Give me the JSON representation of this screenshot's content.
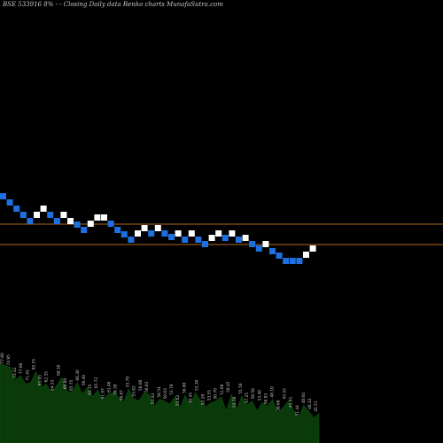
{
  "header": {
    "symbol": "BSE 533916",
    "subtitle": "8% - - Closing Daily data Renko charts MunafaSutra.com"
  },
  "colors": {
    "background": "#000000",
    "up_brick": "#ffffff",
    "down_brick": "#1e6fe0",
    "reference_line": "#b06a1f",
    "volume_fill": "#0a3a0a",
    "volume_label": "#c8c8c8"
  },
  "chart_data": {
    "type": "renko",
    "title": "",
    "reference_lines": [
      253,
      276
    ],
    "bricks": [
      {
        "dir": "down",
        "y": 218
      },
      {
        "dir": "down",
        "y": 225
      },
      {
        "dir": "down",
        "y": 232
      },
      {
        "dir": "down",
        "y": 239
      },
      {
        "dir": "down",
        "y": 246
      },
      {
        "dir": "up",
        "y": 239
      },
      {
        "dir": "up",
        "y": 232
      },
      {
        "dir": "down",
        "y": 239
      },
      {
        "dir": "down",
        "y": 246
      },
      {
        "dir": "up",
        "y": 239
      },
      {
        "dir": "up",
        "y": 246
      },
      {
        "dir": "down",
        "y": 250
      },
      {
        "dir": "down",
        "y": 256
      },
      {
        "dir": "up",
        "y": 249
      },
      {
        "dir": "up",
        "y": 242
      },
      {
        "dir": "up",
        "y": 242
      },
      {
        "dir": "down",
        "y": 249
      },
      {
        "dir": "down",
        "y": 256
      },
      {
        "dir": "down",
        "y": 261
      },
      {
        "dir": "down",
        "y": 267
      },
      {
        "dir": "up",
        "y": 260
      },
      {
        "dir": "up",
        "y": 254
      },
      {
        "dir": "down",
        "y": 260
      },
      {
        "dir": "up",
        "y": 254
      },
      {
        "dir": "down",
        "y": 260
      },
      {
        "dir": "down",
        "y": 264
      },
      {
        "dir": "up",
        "y": 260
      },
      {
        "dir": "down",
        "y": 267
      },
      {
        "dir": "up",
        "y": 260
      },
      {
        "dir": "down",
        "y": 267
      },
      {
        "dir": "down",
        "y": 272
      },
      {
        "dir": "up",
        "y": 265
      },
      {
        "dir": "up",
        "y": 260
      },
      {
        "dir": "down",
        "y": 265
      },
      {
        "dir": "up",
        "y": 260
      },
      {
        "dir": "down",
        "y": 267
      },
      {
        "dir": "up",
        "y": 265
      },
      {
        "dir": "down",
        "y": 272
      },
      {
        "dir": "down",
        "y": 277
      },
      {
        "dir": "up",
        "y": 272
      },
      {
        "dir": "down",
        "y": 280
      },
      {
        "dir": "down",
        "y": 285
      },
      {
        "dir": "down",
        "y": 291
      },
      {
        "dir": "down",
        "y": 291
      },
      {
        "dir": "down",
        "y": 291
      },
      {
        "dir": "up",
        "y": 284
      },
      {
        "dir": "up",
        "y": 277
      }
    ],
    "volume_levels": [
      0.95,
      0.92,
      0.9,
      0.75,
      0.8,
      0.7,
      0.72,
      0.85,
      0.66,
      0.7,
      0.6,
      0.68,
      0.78,
      0.62,
      0.6,
      0.72,
      0.58,
      0.66,
      0.55,
      0.63,
      0.5,
      0.58,
      0.6,
      0.55,
      0.48,
      0.64,
      0.53,
      0.5,
      0.6,
      0.58,
      0.44,
      0.52,
      0.5,
      0.46,
      0.55,
      0.42,
      0.57,
      0.45,
      0.6,
      0.5,
      0.43,
      0.48,
      0.5,
      0.55,
      0.38,
      0.58,
      0.4,
      0.56,
      0.45,
      0.5,
      0.38,
      0.48,
      0.44,
      0.52,
      0.36,
      0.42,
      0.5,
      0.4,
      0.3,
      0.45,
      0.38,
      0.3,
      0.35
    ],
    "volume_labels": [
      "77.60",
      "74.95",
      "73.42",
      "77.00",
      "71.45",
      "65.55",
      "63.95",
      "62.35",
      "64.53",
      "68.30",
      "60.80",
      "65.75",
      "66.30",
      "59.40",
      "63.35",
      "65.72",
      "61.97",
      "61.46",
      "56.30",
      "56.87",
      "55.79",
      "53.82",
      "56.00",
      "56.83",
      "53.44",
      "56.54",
      "50.03",
      "53.79",
      "55.62",
      "56.80",
      "50.45",
      "55.30",
      "52.20",
      "53.55",
      "50.70",
      "51.66",
      "50.45",
      "53.38",
      "55.50",
      "57.25",
      "56.56",
      "53.40",
      "56.93",
      "48.10",
      "50.66",
      "45.55",
      "45.91",
      "51.44",
      "48.04",
      "48.32",
      "45.51"
    ]
  }
}
